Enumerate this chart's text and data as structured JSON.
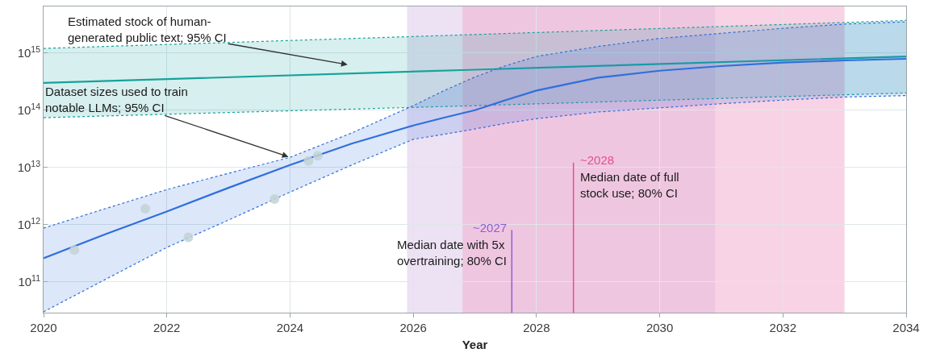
{
  "chart_data": {
    "type": "line",
    "xlabel": "Year",
    "xlim": [
      2020,
      2034
    ],
    "xticks": [
      2020,
      2022,
      2024,
      2026,
      2028,
      2030,
      2032,
      2034
    ],
    "ylim": [
      29000000000.0,
      6500000000000000.0
    ],
    "log": "y",
    "yticks": [
      {
        "value": 100000000000.0,
        "label": "10$^{11}$"
      },
      {
        "value": 1000000000000.0,
        "label": "10$^{12}$"
      },
      {
        "value": 10000000000000.0,
        "label": "10$^{13}$"
      },
      {
        "value": 100000000000000.0,
        "label": "10$^{14}$"
      },
      {
        "value": 1000000000000000.0,
        "label": "10$^{15}$"
      }
    ],
    "grid": true,
    "series": [
      {
        "color": "#14a39a",
        "x": [
          2020,
          2027,
          2034
        ],
        "values": [
          300000000000000.0,
          510000000000000.0,
          870000000000000.0
        ],
        "lower": [
          74000000000000.0,
          120000000000000.0,
          200000000000000.0
        ],
        "upper": [
          1200000000000000.0,
          2100000000000000.0,
          3700000000000000.0
        ]
      },
      {
        "color": "#14a39a",
        "line_style": "dotted",
        "x": [
          2020,
          2027,
          2034
        ],
        "values": [
          74000000000000.0,
          120000000000000.0,
          200000000000000.0
        ]
      },
      {
        "color": "#14a39a",
        "line_style": "dotted",
        "x": [
          2020,
          2027,
          2034
        ],
        "values": [
          1200000000000000.0,
          2100000000000000.0,
          3700000000000000.0
        ]
      },
      {
        "color": "#2f6fdc",
        "line_style": "dotted",
        "x": [
          2020,
          2021,
          2022,
          2023,
          2024,
          2025,
          2026,
          2026.5,
          2027,
          2027.5,
          2028,
          2029,
          2030,
          2031,
          2032,
          2033,
          2034
        ],
        "values": [
          30000000000.0,
          110000000000.0,
          400000000000.0,
          1200000000000.0,
          3700000000000.0,
          11000000000000.0,
          31000000000000.0,
          38000000000000.0,
          47000000000000.0,
          59000000000000.0,
          71000000000000.0,
          93000000000000.0,
          110000000000000.0,
          130000000000000.0,
          150000000000000.0,
          170000000000000.0,
          180000000000000.0
        ]
      },
      {
        "color": "#2f6fdc",
        "line_style": "dotted",
        "x": [
          2020,
          2021,
          2022,
          2023,
          2024,
          2025,
          2026,
          2026.5,
          2027,
          2027.5,
          2028,
          2029,
          2030,
          2031,
          2032,
          2033,
          2034
        ],
        "values": [
          870000000000.0,
          1900000000000.0,
          4100000000000.0,
          7900000000000.0,
          15000000000000.0,
          40000000000000.0,
          120000000000000.0,
          220000000000000.0,
          380000000000000.0,
          600000000000000.0,
          870000000000000.0,
          1300000000000000.0,
          1800000000000000.0,
          2200000000000000.0,
          2700000000000000.0,
          3200000000000000.0,
          3500000000000000.0
        ]
      },
      {
        "color": "#2f6fdc",
        "x": [
          2020,
          2021,
          2022,
          2023,
          2024,
          2025,
          2026,
          2026.5,
          2027,
          2027.5,
          2028,
          2029,
          2030,
          2031,
          2032,
          2033,
          2034
        ],
        "values": [
          260000000000.0,
          680000000000.0,
          1700000000000.0,
          4400000000000.0,
          11000000000000.0,
          26000000000000.0,
          54000000000000.0,
          74000000000000.0,
          100000000000000.0,
          150000000000000.0,
          220000000000000.0,
          370000000000000.0,
          490000000000000.0,
          590000000000000.0,
          680000000000000.0,
          740000000000000.0,
          790000000000000.0
        ],
        "lower": [
          30000000000.0,
          110000000000.0,
          400000000000.0,
          1200000000000.0,
          3700000000000.0,
          11000000000000.0,
          31000000000000.0,
          38000000000000.0,
          47000000000000.0,
          59000000000000.0,
          71000000000000.0,
          93000000000000.0,
          110000000000000.0,
          130000000000000.0,
          150000000000000.0,
          170000000000000.0,
          180000000000000.0
        ],
        "upper": [
          870000000000.0,
          1900000000000.0,
          4100000000000.0,
          7900000000000.0,
          15000000000000.0,
          40000000000000.0,
          120000000000000.0,
          220000000000000.0,
          380000000000000.0,
          600000000000000.0,
          870000000000000.0,
          1300000000000000.0,
          1800000000000000.0,
          2200000000000000.0,
          2700000000000000.0,
          3200000000000000.0,
          3500000000000000.0
        ]
      },
      {
        "type": "scatter",
        "color": "#c3d2d6",
        "x": [
          2020.5,
          2021.65,
          2022.35,
          2023.75,
          2024.3,
          2024.45
        ],
        "values": [
          360000000000.0,
          1900000000000.0,
          600000000000.0,
          2800000000000.0,
          13000000000000.0,
          16000000000000.0
        ]
      }
    ],
    "bands": [
      {
        "axis": "x",
        "from": 2025.9,
        "to": 2030.9,
        "label": "Median date with 5x\novertraining; 80% CI",
        "color": "#dccaea"
      },
      {
        "axis": "x",
        "from": 2026.8,
        "to": 2033.0,
        "label": "Median date of full\nstock use; 80% CI",
        "color": "#f2aed0"
      }
    ],
    "ref_lines": [
      {
        "axis": "x",
        "value": 2027.6,
        "color": "#8b5fd6"
      },
      {
        "axis": "x",
        "value": 2028.6,
        "color": "#e2508c"
      }
    ],
    "annotations": [
      "Estimated stock of human-\ngenerated public text; 95% CI",
      {
        "text": "Dataset sizes used to train\nnotable LLMs; 95% CI",
        "x": 2024,
        "y": 15000000000000.0
      },
      "~2027",
      "~2028"
    ]
  }
}
